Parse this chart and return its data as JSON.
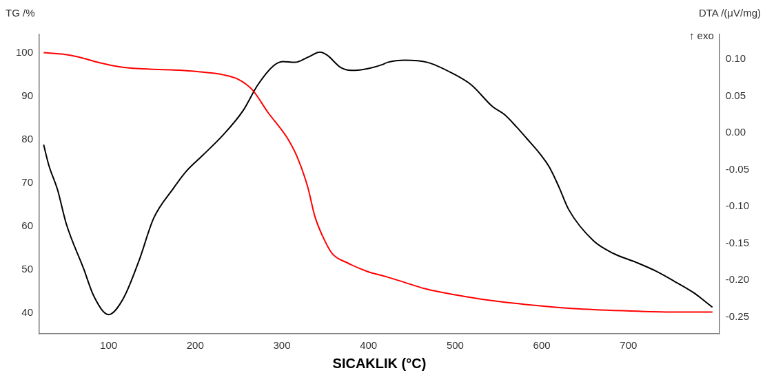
{
  "chart_data": {
    "type": "line",
    "xlabel": "SICAKLIK (°C)",
    "ylabel": "TG /%",
    "y2label": "DTA /(μV/mg)",
    "annotations": [
      "↑ exo"
    ],
    "xlim": [
      20,
      805
    ],
    "xticks": [
      100,
      200,
      300,
      400,
      500,
      600,
      700
    ],
    "ylim": [
      35.2,
      104.2
    ],
    "yticks": [
      40,
      50,
      60,
      70,
      80,
      90,
      100
    ],
    "y2lim": [
      -0.273,
      0.134
    ],
    "y2ticks": [
      {
        "value": -0.25,
        "label": "-0.25"
      },
      {
        "value": -0.2,
        "label": "-0.20"
      },
      {
        "value": -0.15,
        "label": "-0.15"
      },
      {
        "value": -0.1,
        "label": "-0.10"
      },
      {
        "value": -0.05,
        "label": "-0.05"
      },
      {
        "value": 0,
        "label": "0.00"
      },
      {
        "value": 0.05,
        "label": "0.05"
      },
      {
        "value": 0.1,
        "label": "0.10"
      }
    ],
    "grid": false,
    "legend": false,
    "marker": "none",
    "line_style": "solid",
    "series": [
      {
        "color": "#ff0000",
        "x": [
          25,
          49,
          65,
          89,
          111,
          135,
          175,
          204,
          232,
          249,
          266,
          284,
          306,
          318,
          330,
          338,
          347,
          358,
          376,
          398,
          421,
          436,
          465,
          508,
          551,
          594,
          637,
          694,
          752,
          797
        ],
        "values": [
          100,
          99.6,
          99,
          97.7,
          96.8,
          96.3,
          96,
          95.6,
          94.9,
          93.9,
          91.4,
          86.2,
          80.4,
          75.8,
          68.9,
          62.3,
          57.7,
          53.7,
          51.5,
          49.6,
          48.3,
          47.4,
          45.6,
          43.9,
          42.6,
          41.7,
          41,
          40.5,
          40.2,
          40.2
        ]
      },
      {
        "color": "#000000",
        "axis": "y2",
        "x": [
          25,
          31,
          41,
          51,
          71,
          83,
          100,
          117,
          135,
          152,
          175,
          189,
          209,
          232,
          255,
          272,
          290,
          301,
          315,
          330,
          344,
          352,
          368,
          381,
          401,
          416,
          422,
          442,
          468,
          497,
          519,
          543,
          557,
          571,
          583,
          597,
          609,
          620,
          631,
          660,
          683,
          709,
          732,
          752,
          775,
          797
        ],
        "values": [
          -0.016,
          -0.044,
          -0.077,
          -0.123,
          -0.184,
          -0.222,
          -0.247,
          -0.225,
          -0.174,
          -0.116,
          -0.075,
          -0.053,
          -0.03,
          -0.003,
          0.03,
          0.065,
          0.091,
          0.097,
          0.096,
          0.103,
          0.11,
          0.106,
          0.089,
          0.085,
          0.088,
          0.093,
          0.096,
          0.099,
          0.096,
          0.081,
          0.065,
          0.036,
          0.025,
          0.008,
          -0.008,
          -0.027,
          -0.047,
          -0.074,
          -0.104,
          -0.147,
          -0.164,
          -0.176,
          -0.188,
          -0.201,
          -0.217,
          -0.237
        ]
      }
    ]
  }
}
